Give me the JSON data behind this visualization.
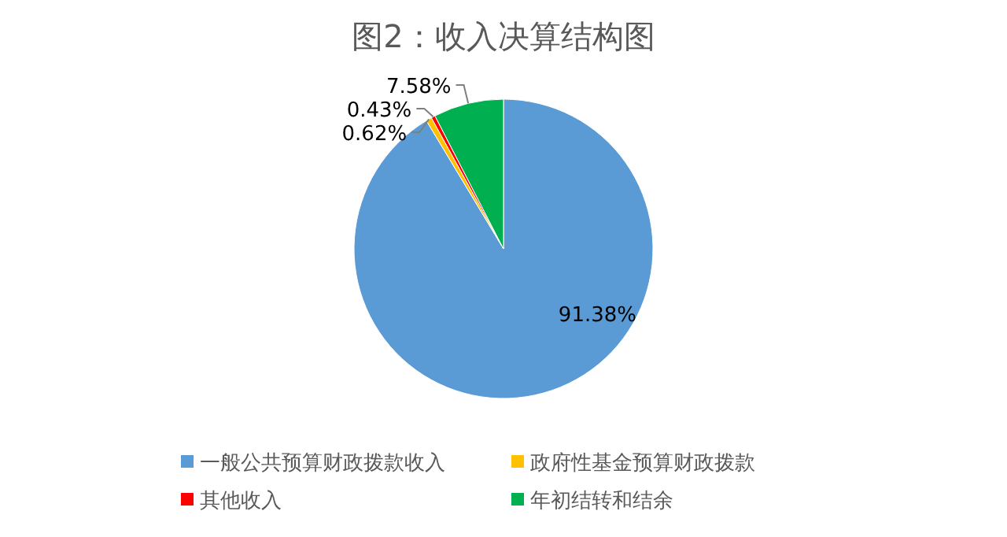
{
  "chart_data": {
    "type": "pie",
    "title": "图2：收入决算结构图",
    "categories": [
      "一般公共预算财政拨款收入",
      "政府性基金预算财政拨款",
      "其他收入",
      "年初结转和结余"
    ],
    "values": [
      91.38,
      0.62,
      0.43,
      7.58
    ],
    "colors": [
      "#5b9bd5",
      "#ffc000",
      "#ff0000",
      "#00b050"
    ],
    "value_labels": [
      "91.38%",
      "0.62%",
      "0.43%",
      "7.58%"
    ],
    "legend": "bottom"
  }
}
